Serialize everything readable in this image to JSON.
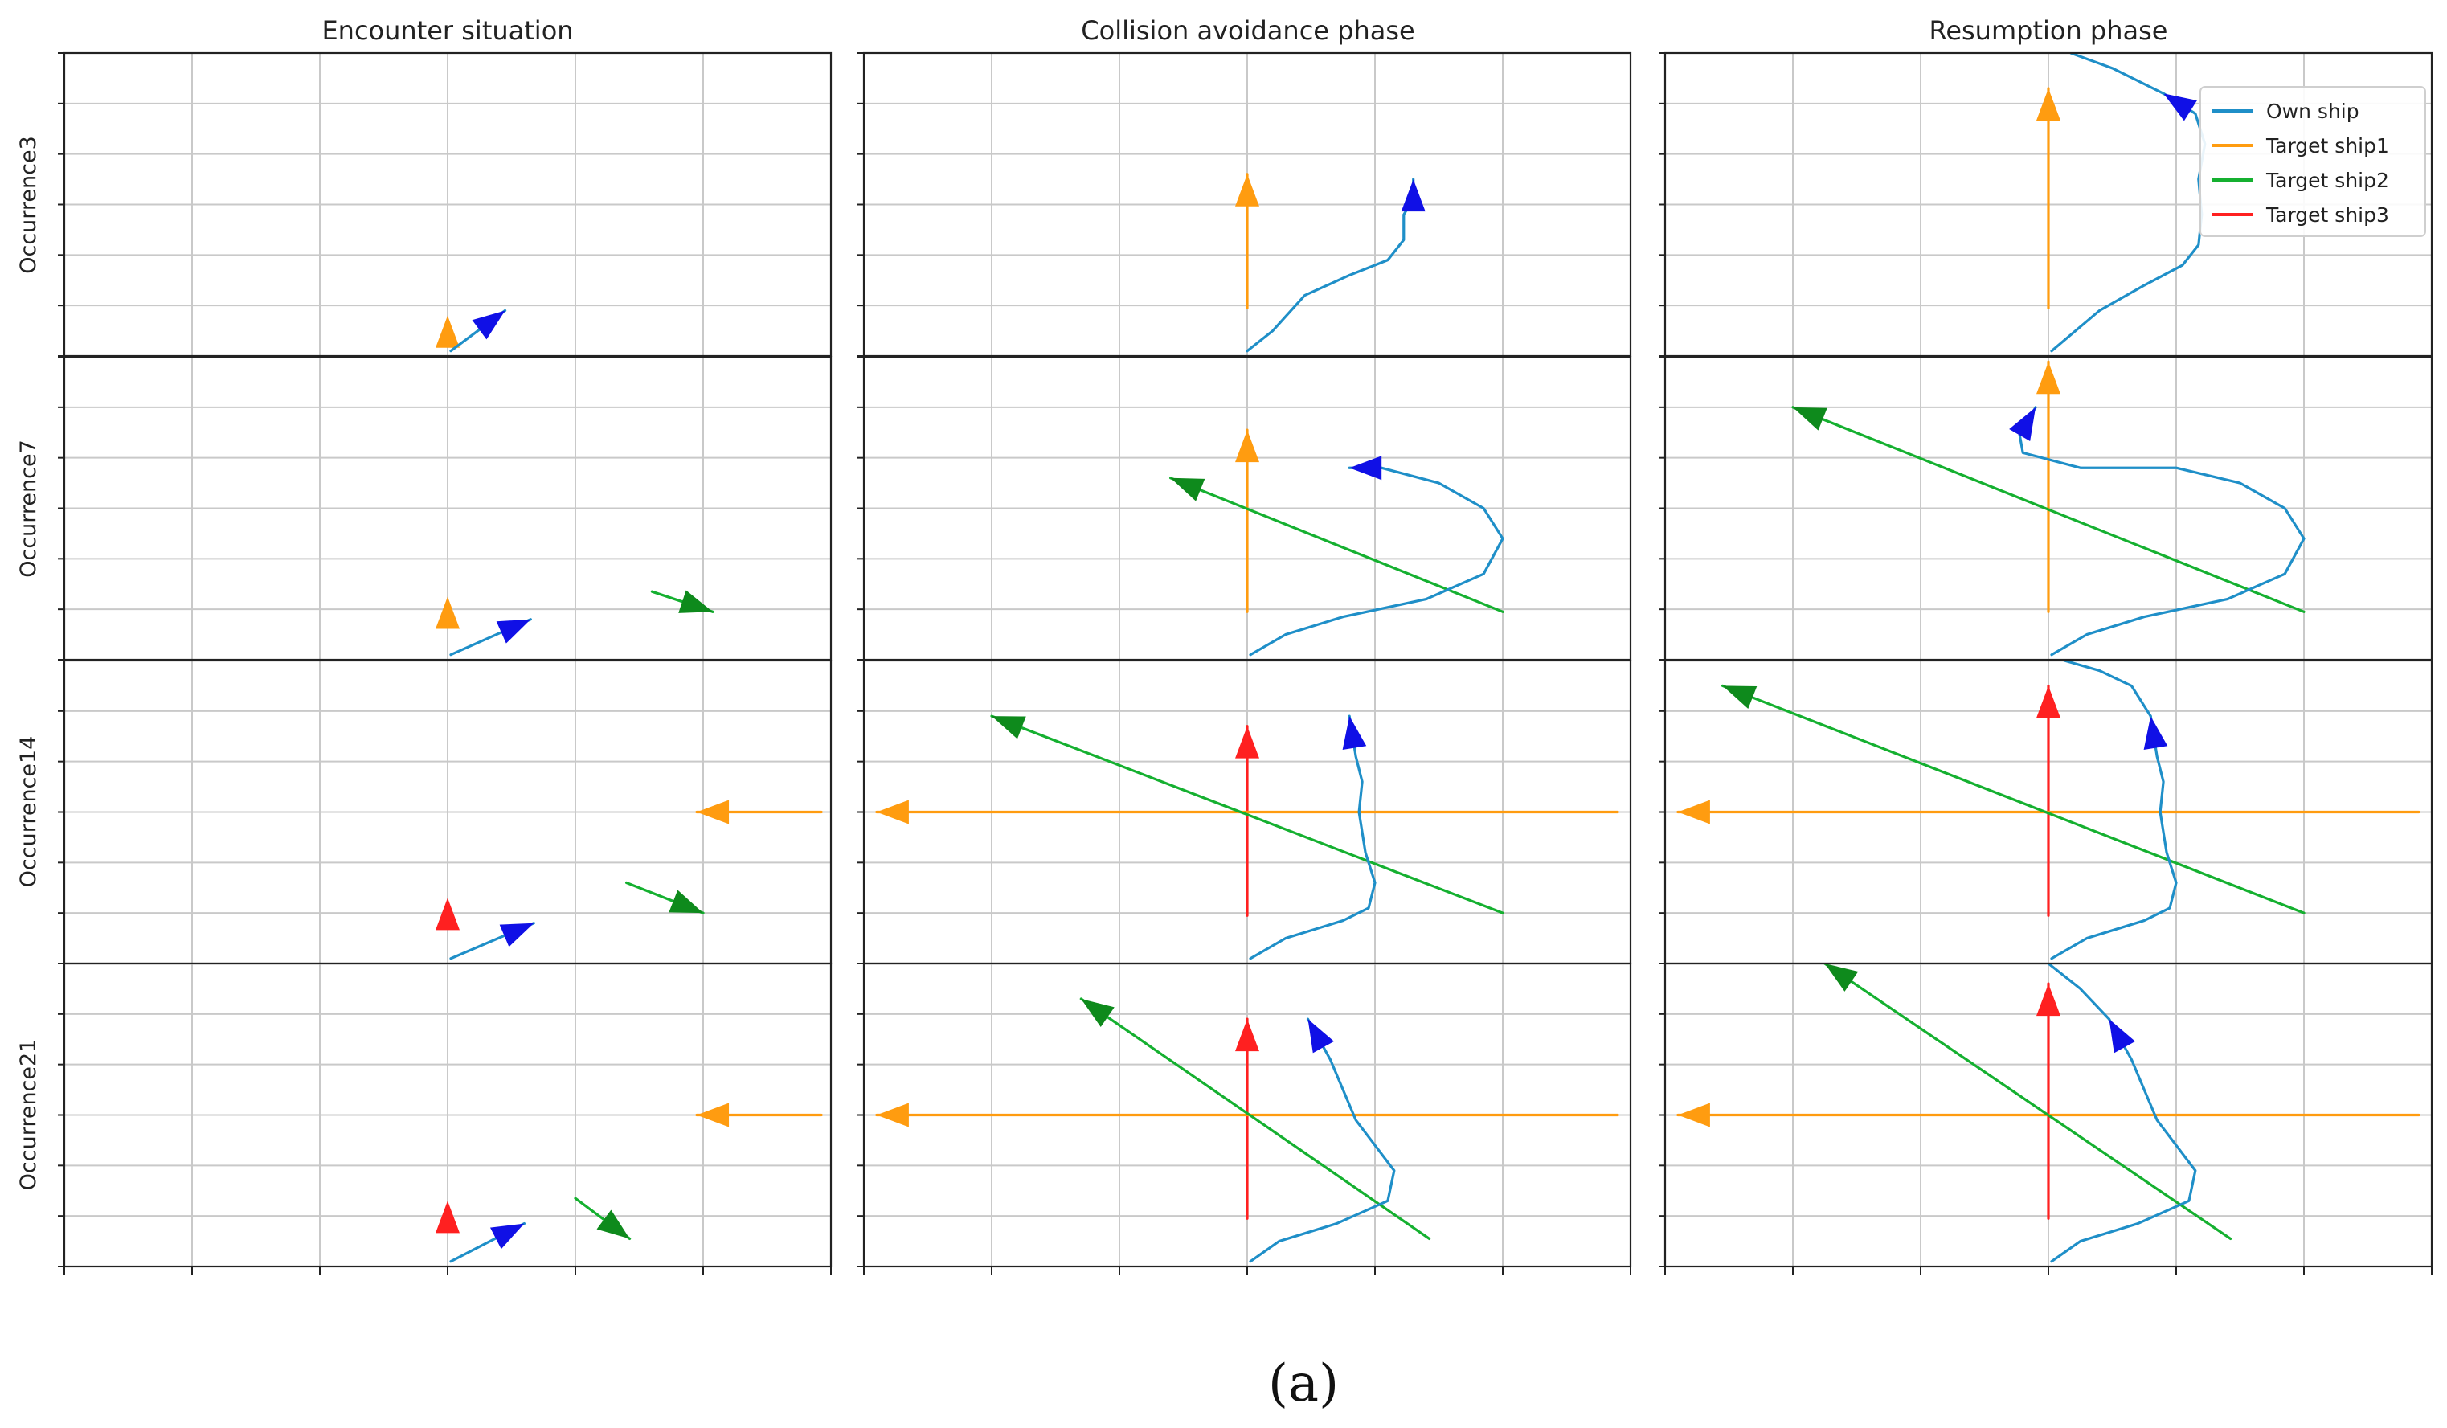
{
  "figure": {
    "caption": "(a)",
    "column_titles": [
      "Encounter situation",
      "Collision avoidance phase",
      "Resumption phase"
    ],
    "row_labels": [
      "Occurrence3",
      "Occurrence7",
      "Occurrence14",
      "Occurrence21"
    ]
  },
  "colors": {
    "own_ship": "#1f8fc8",
    "own_ship_arrow": "#1010e6",
    "target_ship1": "#ff9c10",
    "target_ship2": "#15b030",
    "target_ship2_arrow": "#0e8a1c",
    "target_ship3": "#ff2020"
  },
  "chart_data": {
    "type": "line",
    "grid": true,
    "xlim": [
      -6,
      6
    ],
    "ylim": [
      0,
      6
    ],
    "legend": {
      "placement": "top-right",
      "panel": "Occurrence3 / Resumption phase",
      "entries": [
        {
          "name": "Own ship",
          "color": "#1f8fc8"
        },
        {
          "name": "Target ship1",
          "color": "#ff9c10"
        },
        {
          "name": "Target ship2",
          "color": "#15b030"
        },
        {
          "name": "Target ship3",
          "color": "#ff2020"
        }
      ]
    },
    "panels": [
      {
        "row": 0,
        "col": 0,
        "series": [
          {
            "name": "Target ship1",
            "points": [
              [
                0,
                0.8
              ]
            ],
            "arrow": "end"
          },
          {
            "name": "Own ship",
            "points": [
              [
                0.05,
                0.1
              ],
              [
                0.9,
                0.9
              ]
            ],
            "arrow": "end"
          }
        ]
      },
      {
        "row": 0,
        "col": 1,
        "series": [
          {
            "name": "Target ship1",
            "points": [
              [
                0,
                0.95
              ],
              [
                0,
                3.6
              ]
            ],
            "arrow": "end"
          },
          {
            "name": "Own ship",
            "points": [
              [
                0,
                0.1
              ],
              [
                0.4,
                0.5
              ],
              [
                0.9,
                1.2
              ],
              [
                1.6,
                1.6
              ],
              [
                2.2,
                1.9
              ],
              [
                2.45,
                2.3
              ],
              [
                2.45,
                2.8
              ],
              [
                2.6,
                3.1
              ],
              [
                2.6,
                3.5
              ]
            ],
            "arrow": "end"
          }
        ]
      },
      {
        "row": 0,
        "col": 2,
        "series": [
          {
            "name": "Target ship1",
            "points": [
              [
                0,
                0.95
              ],
              [
                0,
                5.3
              ]
            ],
            "arrow": "end"
          },
          {
            "name": "Own ship",
            "points": [
              [
                0.05,
                0.1
              ],
              [
                0.8,
                0.9
              ],
              [
                1.5,
                1.4
              ],
              [
                2.1,
                1.8
              ],
              [
                2.35,
                2.2
              ],
              [
                2.4,
                2.8
              ],
              [
                2.35,
                3.5
              ],
              [
                2.45,
                4.2
              ],
              [
                2.3,
                4.8
              ],
              [
                1.8,
                5.2
              ]
            ],
            "arrow": "end"
          },
          {
            "name": "Own ship",
            "points": [
              [
                1.8,
                5.2
              ],
              [
                1.0,
                5.7
              ],
              [
                0.35,
                6.0
              ]
            ],
            "arrow": "none"
          }
        ]
      },
      {
        "row": 1,
        "col": 0,
        "series": [
          {
            "name": "Target ship1",
            "points": [
              [
                0,
                1.25
              ]
            ],
            "arrow": "end"
          },
          {
            "name": "Own ship",
            "points": [
              [
                0.05,
                0.1
              ],
              [
                1.3,
                0.8
              ]
            ],
            "arrow": "end"
          },
          {
            "name": "Target ship2",
            "points": [
              [
                3.2,
                1.35
              ],
              [
                4.15,
                0.95
              ]
            ],
            "arrow": "end"
          }
        ]
      },
      {
        "row": 1,
        "col": 1,
        "series": [
          {
            "name": "Target ship1",
            "points": [
              [
                0,
                0.95
              ],
              [
                0,
                4.55
              ]
            ],
            "arrow": "end"
          },
          {
            "name": "Target ship2",
            "points": [
              [
                4.0,
                0.95
              ],
              [
                -1.2,
                3.6
              ]
            ],
            "arrow": "end"
          },
          {
            "name": "Own ship",
            "points": [
              [
                0.05,
                0.1
              ],
              [
                0.6,
                0.5
              ],
              [
                1.5,
                0.85
              ],
              [
                2.8,
                1.2
              ],
              [
                3.7,
                1.7
              ],
              [
                4.0,
                2.4
              ],
              [
                3.7,
                3.0
              ],
              [
                3.0,
                3.5
              ],
              [
                2.1,
                3.8
              ],
              [
                1.6,
                3.8
              ]
            ],
            "arrow": "end"
          }
        ]
      },
      {
        "row": 1,
        "col": 2,
        "series": [
          {
            "name": "Target ship1",
            "points": [
              [
                0,
                0.95
              ],
              [
                0,
                5.9
              ]
            ],
            "arrow": "end"
          },
          {
            "name": "Target ship2",
            "points": [
              [
                4.0,
                0.95
              ],
              [
                -4.0,
                5.0
              ]
            ],
            "arrow": "end"
          },
          {
            "name": "Own ship",
            "points": [
              [
                0.05,
                0.1
              ],
              [
                0.6,
                0.5
              ],
              [
                1.5,
                0.85
              ],
              [
                2.8,
                1.2
              ],
              [
                3.7,
                1.7
              ],
              [
                4.0,
                2.4
              ],
              [
                3.7,
                3.0
              ],
              [
                3.0,
                3.5
              ],
              [
                2.0,
                3.8
              ],
              [
                0.5,
                3.8
              ],
              [
                -0.4,
                4.1
              ],
              [
                -0.45,
                4.45
              ],
              [
                -0.2,
                5.0
              ]
            ],
            "arrow": "end"
          }
        ]
      },
      {
        "row": 2,
        "col": 0,
        "series": [
          {
            "name": "Target ship3",
            "points": [
              [
                0,
                1.3
              ]
            ],
            "arrow": "end"
          },
          {
            "name": "Own ship",
            "points": [
              [
                0.05,
                0.1
              ],
              [
                1.35,
                0.8
              ]
            ],
            "arrow": "end"
          },
          {
            "name": "Target ship2",
            "points": [
              [
                2.8,
                1.6
              ],
              [
                4.0,
                1.0
              ]
            ],
            "arrow": "end"
          },
          {
            "name": "Target ship1",
            "points": [
              [
                5.85,
                3.0
              ],
              [
                3.9,
                3.0
              ]
            ],
            "arrow": "end"
          }
        ]
      },
      {
        "row": 2,
        "col": 1,
        "series": [
          {
            "name": "Target ship3",
            "points": [
              [
                0,
                0.95
              ],
              [
                0,
                4.7
              ]
            ],
            "arrow": "end"
          },
          {
            "name": "Target ship1",
            "points": [
              [
                5.8,
                3.0
              ],
              [
                -5.8,
                3.0
              ]
            ],
            "arrow": "end"
          },
          {
            "name": "Target ship2",
            "points": [
              [
                4.0,
                1.0
              ],
              [
                -4.0,
                4.9
              ]
            ],
            "arrow": "end"
          },
          {
            "name": "Own ship",
            "points": [
              [
                0.05,
                0.1
              ],
              [
                0.6,
                0.5
              ],
              [
                1.5,
                0.85
              ],
              [
                1.9,
                1.1
              ],
              [
                2.0,
                1.6
              ],
              [
                1.85,
                2.2
              ],
              [
                1.75,
                3.0
              ],
              [
                1.8,
                3.6
              ],
              [
                1.7,
                4.1
              ],
              [
                1.6,
                4.9
              ]
            ],
            "arrow": "end"
          }
        ]
      },
      {
        "row": 2,
        "col": 2,
        "series": [
          {
            "name": "Target ship3",
            "points": [
              [
                0,
                0.95
              ],
              [
                0,
                5.5
              ]
            ],
            "arrow": "end"
          },
          {
            "name": "Target ship1",
            "points": [
              [
                5.8,
                3.0
              ],
              [
                -5.8,
                3.0
              ]
            ],
            "arrow": "end"
          },
          {
            "name": "Target ship2",
            "points": [
              [
                4.0,
                1.0
              ],
              [
                -5.1,
                5.5
              ]
            ],
            "arrow": "end"
          },
          {
            "name": "Own ship",
            "points": [
              [
                0.05,
                0.1
              ],
              [
                0.6,
                0.5
              ],
              [
                1.5,
                0.85
              ],
              [
                1.9,
                1.1
              ],
              [
                2.0,
                1.6
              ],
              [
                1.85,
                2.2
              ],
              [
                1.75,
                3.0
              ],
              [
                1.8,
                3.6
              ],
              [
                1.7,
                4.1
              ],
              [
                1.6,
                4.9
              ]
            ],
            "arrow": "end"
          },
          {
            "name": "Own ship",
            "points": [
              [
                1.6,
                4.9
              ],
              [
                1.3,
                5.5
              ],
              [
                0.8,
                5.8
              ],
              [
                0.25,
                6.0
              ]
            ],
            "arrow": "none"
          }
        ]
      },
      {
        "row": 3,
        "col": 0,
        "series": [
          {
            "name": "Target ship3",
            "points": [
              [
                0,
                1.3
              ]
            ],
            "arrow": "end"
          },
          {
            "name": "Own ship",
            "points": [
              [
                0.05,
                0.1
              ],
              [
                1.2,
                0.85
              ]
            ],
            "arrow": "end"
          },
          {
            "name": "Target ship2",
            "points": [
              [
                2.0,
                1.35
              ],
              [
                2.85,
                0.55
              ]
            ],
            "arrow": "end"
          },
          {
            "name": "Target ship1",
            "points": [
              [
                5.85,
                3.0
              ],
              [
                3.9,
                3.0
              ]
            ],
            "arrow": "end"
          }
        ]
      },
      {
        "row": 3,
        "col": 1,
        "series": [
          {
            "name": "Target ship3",
            "points": [
              [
                0,
                0.95
              ],
              [
                0,
                4.9
              ]
            ],
            "arrow": "end"
          },
          {
            "name": "Target ship1",
            "points": [
              [
                5.8,
                3.0
              ],
              [
                -5.8,
                3.0
              ]
            ],
            "arrow": "end"
          },
          {
            "name": "Target ship2",
            "points": [
              [
                2.85,
                0.55
              ],
              [
                -2.6,
                5.3
              ]
            ],
            "arrow": "end"
          },
          {
            "name": "Own ship",
            "points": [
              [
                0.05,
                0.1
              ],
              [
                0.5,
                0.5
              ],
              [
                1.4,
                0.85
              ],
              [
                2.2,
                1.3
              ],
              [
                2.3,
                1.9
              ],
              [
                2.0,
                2.4
              ],
              [
                1.7,
                2.9
              ],
              [
                1.5,
                3.5
              ],
              [
                1.3,
                4.1
              ],
              [
                0.95,
                4.9
              ]
            ],
            "arrow": "end"
          }
        ]
      },
      {
        "row": 3,
        "col": 2,
        "series": [
          {
            "name": "Target ship3",
            "points": [
              [
                0,
                0.95
              ],
              [
                0,
                5.6
              ]
            ],
            "arrow": "end"
          },
          {
            "name": "Target ship1",
            "points": [
              [
                5.8,
                3.0
              ],
              [
                -5.8,
                3.0
              ]
            ],
            "arrow": "end"
          },
          {
            "name": "Target ship2",
            "points": [
              [
                2.85,
                0.55
              ],
              [
                -3.5,
                6.0
              ]
            ],
            "arrow": "end"
          },
          {
            "name": "Own ship",
            "points": [
              [
                0.05,
                0.1
              ],
              [
                0.5,
                0.5
              ],
              [
                1.4,
                0.85
              ],
              [
                2.2,
                1.3
              ],
              [
                2.3,
                1.9
              ],
              [
                2.0,
                2.4
              ],
              [
                1.7,
                2.9
              ],
              [
                1.5,
                3.5
              ],
              [
                1.3,
                4.1
              ],
              [
                0.95,
                4.9
              ]
            ],
            "arrow": "end"
          },
          {
            "name": "Own ship",
            "points": [
              [
                0.95,
                4.9
              ],
              [
                0.5,
                5.5
              ],
              [
                0.1,
                5.9
              ],
              [
                0.0,
                6.0
              ]
            ],
            "arrow": "none"
          }
        ]
      }
    ]
  }
}
